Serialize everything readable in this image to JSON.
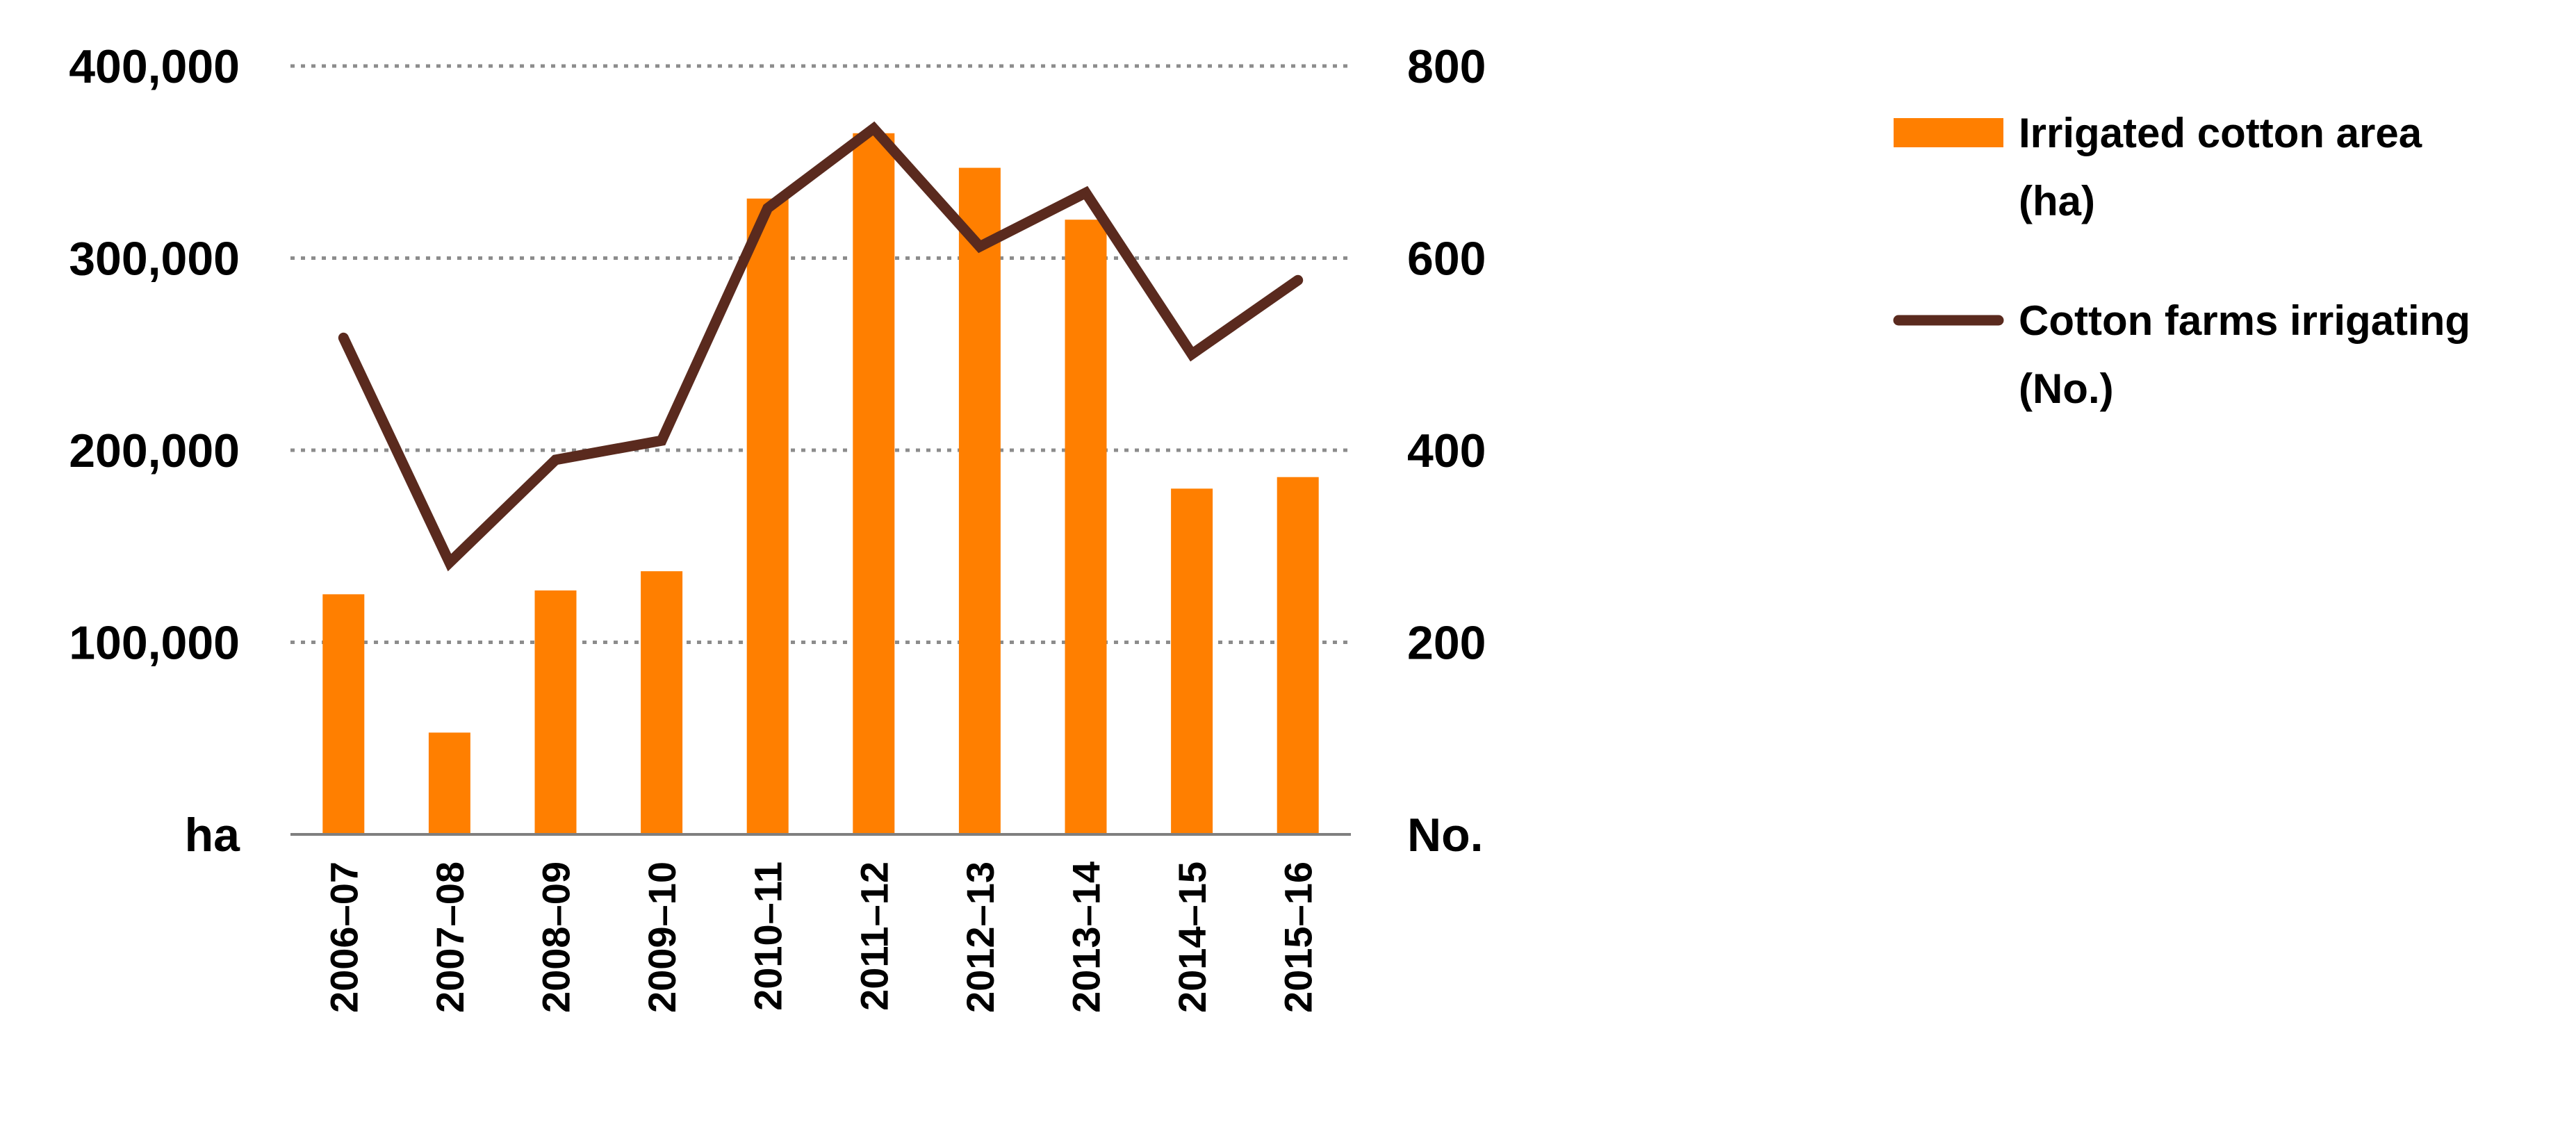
{
  "chart_data": {
    "type": "bar+line",
    "categories": [
      "2006–07",
      "2007–08",
      "2008–09",
      "2009–10",
      "2010–11",
      "2011–12",
      "2012–13",
      "2013–14",
      "2014–15",
      "2015–16"
    ],
    "series": [
      {
        "name": "Irrigated cotton area (ha)",
        "kind": "bar",
        "axis": "left",
        "color": "#FF7F00",
        "values": [
          125000,
          53000,
          127000,
          137000,
          331000,
          365000,
          347000,
          320000,
          180000,
          186000
        ]
      },
      {
        "name": "Cotton farms irrigating (No.)",
        "kind": "line",
        "axis": "right",
        "color": "#5A2A1E",
        "values": [
          517,
          283,
          390,
          410,
          652,
          735,
          612,
          668,
          500,
          577
        ]
      }
    ],
    "y_left": {
      "label": "ha",
      "ylim": [
        0,
        400000
      ],
      "ticks": [
        100000,
        200000,
        300000,
        400000
      ],
      "tick_labels": [
        "100,000",
        "200,000",
        "300,000",
        "400,000"
      ]
    },
    "y_right": {
      "label": "No.",
      "ylim": [
        0,
        800
      ],
      "ticks": [
        200,
        400,
        600,
        800
      ],
      "tick_labels": [
        "200",
        "400",
        "600",
        "800"
      ]
    },
    "legend": {
      "placement": "right",
      "entries": [
        {
          "lines": [
            "Irrigated cotton area",
            "(ha)"
          ]
        },
        {
          "lines": [
            "Cotton farms irrigating",
            "(No.)"
          ]
        }
      ]
    },
    "grid": "dotted horizontal"
  }
}
